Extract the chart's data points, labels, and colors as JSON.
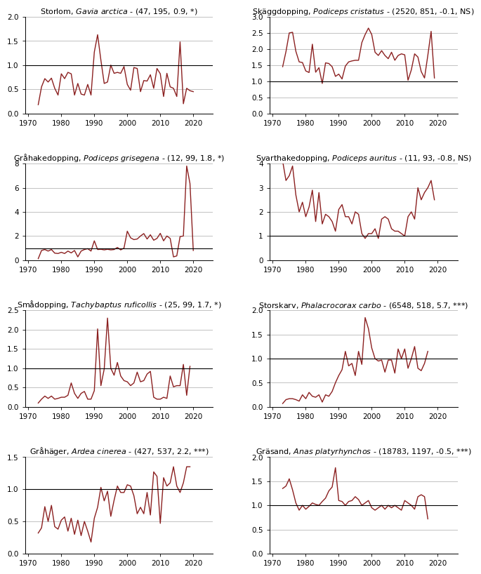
{
  "panels": [
    {
      "title_plain": "Storlom, ",
      "title_italic": "Gavia arctica",
      "title_suffix": " - (47, 195, 0.9, *)",
      "ylim": [
        0.0,
        2.0
      ],
      "yticks": [
        0.0,
        0.5,
        1.0,
        1.5,
        2.0
      ],
      "hline": 1.0,
      "years": [
        1973,
        1974,
        1975,
        1976,
        1977,
        1978,
        1979,
        1980,
        1981,
        1982,
        1983,
        1984,
        1985,
        1986,
        1987,
        1988,
        1989,
        1990,
        1991,
        1992,
        1993,
        1994,
        1995,
        1996,
        1997,
        1998,
        1999,
        2000,
        2001,
        2002,
        2003,
        2004,
        2005,
        2006,
        2007,
        2008,
        2009,
        2010,
        2011,
        2012,
        2013,
        2014,
        2015,
        2016,
        2017,
        2018,
        2019,
        2020,
        2021,
        2022,
        2023
      ],
      "values": [
        0.18,
        0.55,
        0.72,
        0.65,
        0.73,
        0.52,
        0.38,
        0.82,
        0.72,
        0.85,
        0.82,
        0.38,
        0.62,
        0.4,
        0.38,
        0.6,
        0.38,
        1.27,
        1.63,
        1.1,
        0.62,
        0.65,
        1.0,
        0.83,
        0.85,
        0.83,
        0.97,
        0.6,
        0.48,
        0.95,
        0.93,
        0.45,
        0.68,
        0.67,
        0.8,
        0.52,
        0.93,
        0.82,
        0.35,
        0.83,
        0.55,
        0.52,
        0.35,
        1.48,
        0.2,
        0.52,
        0.47,
        0.45,
        null,
        null,
        null
      ]
    },
    {
      "title_plain": "Skäggdopping, ",
      "title_italic": "Podiceps cristatus",
      "title_suffix": " - (2520, 851, -0.1, NS)",
      "ylim": [
        0.0,
        3.0
      ],
      "yticks": [
        0.0,
        0.5,
        1.0,
        1.5,
        2.0,
        2.5,
        3.0
      ],
      "hline": 1.0,
      "years": [
        1973,
        1974,
        1975,
        1976,
        1977,
        1978,
        1979,
        1980,
        1981,
        1982,
        1983,
        1984,
        1985,
        1986,
        1987,
        1988,
        1989,
        1990,
        1991,
        1992,
        1993,
        1994,
        1995,
        1996,
        1997,
        1998,
        1999,
        2000,
        2001,
        2002,
        2003,
        2004,
        2005,
        2006,
        2007,
        2008,
        2009,
        2010,
        2011,
        2012,
        2013,
        2014,
        2015,
        2016,
        2017,
        2018,
        2019,
        2020,
        2021,
        2022,
        2023
      ],
      "values": [
        1.45,
        1.92,
        2.5,
        2.52,
        1.93,
        1.6,
        1.58,
        1.32,
        1.27,
        2.15,
        1.28,
        1.42,
        0.93,
        1.57,
        1.55,
        1.45,
        1.15,
        1.22,
        1.07,
        1.47,
        1.6,
        1.63,
        1.65,
        1.65,
        2.2,
        2.45,
        2.65,
        2.45,
        1.9,
        1.8,
        1.95,
        1.8,
        1.7,
        1.9,
        1.65,
        1.8,
        1.85,
        1.82,
        1.03,
        1.35,
        1.85,
        1.75,
        1.3,
        1.1,
        1.8,
        2.55,
        1.1,
        null,
        null,
        null,
        null
      ]
    },
    {
      "title_plain": "Gråhakedopping, ",
      "title_italic": "Podiceps grisegena",
      "title_suffix": " - (12, 99, 1.8, *)",
      "ylim": [
        0,
        8
      ],
      "yticks": [
        0,
        2,
        4,
        6,
        8
      ],
      "hline": 1.0,
      "years": [
        1973,
        1974,
        1975,
        1976,
        1977,
        1978,
        1979,
        1980,
        1981,
        1982,
        1983,
        1984,
        1985,
        1986,
        1987,
        1988,
        1989,
        1990,
        1991,
        1992,
        1993,
        1994,
        1995,
        1996,
        1997,
        1998,
        1999,
        2000,
        2001,
        2002,
        2003,
        2004,
        2005,
        2006,
        2007,
        2008,
        2009,
        2010,
        2011,
        2012,
        2013,
        2014,
        2015,
        2016,
        2017,
        2018,
        2019,
        2020,
        2021,
        2022,
        2023
      ],
      "values": [
        0.12,
        0.8,
        0.88,
        0.75,
        0.88,
        0.58,
        0.55,
        0.65,
        0.55,
        0.75,
        0.6,
        0.8,
        0.27,
        0.75,
        0.88,
        0.95,
        0.75,
        1.6,
        0.88,
        0.9,
        0.85,
        0.9,
        0.85,
        0.88,
        1.05,
        0.85,
        1.0,
        2.4,
        1.85,
        1.7,
        1.75,
        2.0,
        2.2,
        1.75,
        2.1,
        1.65,
        1.8,
        2.22,
        1.6,
        2.0,
        1.8,
        0.27,
        0.35,
        1.95,
        2.0,
        7.8,
        6.35,
        0.8,
        null,
        null,
        null
      ]
    },
    {
      "title_plain": "Svarthakedopping, ",
      "title_italic": "Podiceps auritus",
      "title_suffix": " - (11, 93, -0.8, NS)",
      "ylim": [
        0.0,
        4.0
      ],
      "yticks": [
        0.0,
        1.0,
        2.0,
        3.0,
        4.0
      ],
      "hline": 1.0,
      "years": [
        1973,
        1974,
        1975,
        1976,
        1977,
        1978,
        1979,
        1980,
        1981,
        1982,
        1983,
        1984,
        1985,
        1986,
        1987,
        1988,
        1989,
        1990,
        1991,
        1992,
        1993,
        1994,
        1995,
        1996,
        1997,
        1998,
        1999,
        2000,
        2001,
        2002,
        2003,
        2004,
        2005,
        2006,
        2007,
        2008,
        2009,
        2010,
        2011,
        2012,
        2013,
        2014,
        2015,
        2016,
        2017,
        2018,
        2019,
        2020,
        2021,
        2022,
        2023
      ],
      "values": [
        4.1,
        3.3,
        3.5,
        3.9,
        2.7,
        2.0,
        2.4,
        1.8,
        2.2,
        2.9,
        1.6,
        2.8,
        1.5,
        1.9,
        1.8,
        1.6,
        1.2,
        2.1,
        2.3,
        1.8,
        1.8,
        1.5,
        2.0,
        1.9,
        1.1,
        0.9,
        1.1,
        1.1,
        1.3,
        0.9,
        1.7,
        1.8,
        1.7,
        1.3,
        1.2,
        1.2,
        1.1,
        1.0,
        1.8,
        2.0,
        1.7,
        3.0,
        2.5,
        2.8,
        3.0,
        3.3,
        2.5,
        null,
        null,
        null,
        null
      ]
    },
    {
      "title_plain": "Smådopping, ",
      "title_italic": "Tachybaptus ruficollis",
      "title_suffix": " - (25, 99, 1.7, *)",
      "ylim": [
        0.0,
        2.5
      ],
      "yticks": [
        0.0,
        0.5,
        1.0,
        1.5,
        2.0,
        2.5
      ],
      "hline": 1.0,
      "years": [
        1973,
        1974,
        1975,
        1976,
        1977,
        1978,
        1979,
        1980,
        1981,
        1982,
        1983,
        1984,
        1985,
        1986,
        1987,
        1988,
        1989,
        1990,
        1991,
        1992,
        1993,
        1994,
        1995,
        1996,
        1997,
        1998,
        1999,
        2000,
        2001,
        2002,
        2003,
        2004,
        2005,
        2006,
        2007,
        2008,
        2009,
        2010,
        2011,
        2012,
        2013,
        2014,
        2015,
        2016,
        2017,
        2018,
        2019,
        2020,
        2021,
        2022,
        2023
      ],
      "values": [
        0.1,
        0.2,
        0.28,
        0.22,
        0.28,
        0.2,
        0.22,
        0.25,
        0.25,
        0.3,
        0.62,
        0.35,
        0.22,
        0.35,
        0.4,
        0.2,
        0.2,
        0.42,
        2.02,
        0.55,
        0.98,
        2.3,
        1.0,
        0.82,
        1.15,
        0.8,
        0.68,
        0.65,
        0.55,
        0.62,
        0.9,
        0.65,
        0.68,
        0.85,
        0.92,
        0.25,
        0.2,
        0.2,
        0.25,
        0.22,
        0.8,
        0.52,
        0.55,
        0.55,
        1.1,
        0.3,
        1.05,
        null,
        null,
        null,
        null
      ]
    },
    {
      "title_plain": "Storskarv, ",
      "title_italic": "Phalacrocorax carbo",
      "title_suffix": " - (6548, 518, 5.7, ***)",
      "ylim": [
        0.0,
        2.0
      ],
      "yticks": [
        0.0,
        0.5,
        1.0,
        1.5,
        2.0
      ],
      "hline": 1.0,
      "years": [
        1973,
        1974,
        1975,
        1976,
        1977,
        1978,
        1979,
        1980,
        1981,
        1982,
        1983,
        1984,
        1985,
        1986,
        1987,
        1988,
        1989,
        1990,
        1991,
        1992,
        1993,
        1994,
        1995,
        1996,
        1997,
        1998,
        1999,
        2000,
        2001,
        2002,
        2003,
        2004,
        2005,
        2006,
        2007,
        2008,
        2009,
        2010,
        2011,
        2012,
        2013,
        2014,
        2015,
        2016,
        2017,
        2018,
        2019,
        2020,
        2021,
        2022,
        2023
      ],
      "values": [
        0.07,
        0.15,
        0.17,
        0.17,
        0.15,
        0.12,
        0.25,
        0.17,
        0.3,
        0.22,
        0.2,
        0.25,
        0.1,
        0.25,
        0.22,
        0.32,
        0.5,
        0.65,
        0.77,
        1.15,
        0.85,
        0.9,
        0.65,
        1.15,
        0.88,
        1.85,
        1.62,
        1.22,
        1.0,
        0.95,
        0.97,
        0.72,
        0.97,
        0.97,
        0.7,
        1.2,
        1.0,
        1.2,
        0.8,
        1.0,
        1.25,
        0.8,
        0.75,
        0.9,
        1.15,
        null,
        null,
        null,
        null,
        null,
        null
      ]
    },
    {
      "title_plain": "Gråhäger, ",
      "title_italic": "Ardea cinerea",
      "title_suffix": " - (427, 537, 2.2, ***)",
      "ylim": [
        0.0,
        1.5
      ],
      "yticks": [
        0.0,
        0.5,
        1.0,
        1.5
      ],
      "hline": 1.0,
      "years": [
        1973,
        1974,
        1975,
        1976,
        1977,
        1978,
        1979,
        1980,
        1981,
        1982,
        1983,
        1984,
        1985,
        1986,
        1987,
        1988,
        1989,
        1990,
        1991,
        1992,
        1993,
        1994,
        1995,
        1996,
        1997,
        1998,
        1999,
        2000,
        2001,
        2002,
        2003,
        2004,
        2005,
        2006,
        2007,
        2008,
        2009,
        2010,
        2011,
        2012,
        2013,
        2014,
        2015,
        2016,
        2017,
        2018,
        2019,
        2020,
        2021,
        2022,
        2023
      ],
      "values": [
        0.32,
        0.4,
        0.73,
        0.5,
        0.75,
        0.42,
        0.38,
        0.52,
        0.57,
        0.35,
        0.55,
        0.3,
        0.52,
        0.28,
        0.5,
        0.35,
        0.18,
        0.55,
        0.72,
        1.03,
        0.82,
        0.97,
        0.58,
        0.83,
        1.05,
        0.95,
        0.95,
        1.07,
        1.05,
        0.9,
        0.62,
        0.72,
        0.62,
        0.95,
        0.6,
        1.27,
        1.2,
        0.47,
        1.18,
        1.05,
        1.1,
        1.35,
        1.05,
        0.95,
        1.1,
        1.35,
        1.35,
        null,
        null,
        null,
        null
      ]
    },
    {
      "title_plain": "Gräsand, ",
      "title_italic": "Anas platyrhynchos",
      "title_suffix": " - (18783, 1197, -0.5, ***)",
      "ylim": [
        0.0,
        2.0
      ],
      "yticks": [
        0.0,
        0.5,
        1.0,
        1.5,
        2.0
      ],
      "hline": 1.0,
      "years": [
        1973,
        1974,
        1975,
        1976,
        1977,
        1978,
        1979,
        1980,
        1981,
        1982,
        1983,
        1984,
        1985,
        1986,
        1987,
        1988,
        1989,
        1990,
        1991,
        1992,
        1993,
        1994,
        1995,
        1996,
        1997,
        1998,
        1999,
        2000,
        2001,
        2002,
        2003,
        2004,
        2005,
        2006,
        2007,
        2008,
        2009,
        2010,
        2011,
        2012,
        2013,
        2014,
        2015,
        2016,
        2017,
        2018,
        2019,
        2020,
        2021,
        2022,
        2023
      ],
      "values": [
        1.35,
        1.4,
        1.55,
        1.32,
        1.05,
        0.9,
        1.0,
        0.92,
        0.98,
        1.05,
        1.02,
        1.0,
        1.08,
        1.15,
        1.3,
        1.38,
        1.78,
        1.1,
        1.08,
        1.0,
        1.08,
        1.1,
        1.18,
        1.12,
        1.0,
        1.05,
        1.1,
        0.95,
        0.9,
        0.95,
        1.0,
        0.92,
        1.0,
        0.95,
        1.0,
        0.95,
        0.9,
        1.1,
        1.05,
        1.0,
        0.92,
        1.18,
        1.22,
        1.18,
        0.72,
        null,
        null,
        null,
        null,
        null,
        null
      ]
    }
  ],
  "line_color": "#8B2020",
  "line_width": 1.0,
  "hline_color": "#000000",
  "hline_lw": 0.8,
  "grid_color": "#aaaaaa",
  "grid_lw": 0.5,
  "background_color": "#ffffff",
  "xlim": [
    1969,
    2026
  ],
  "xticks": [
    1970,
    1980,
    1990,
    2000,
    2010,
    2020
  ],
  "tick_fontsize": 7.5,
  "title_fontsize": 8.0
}
